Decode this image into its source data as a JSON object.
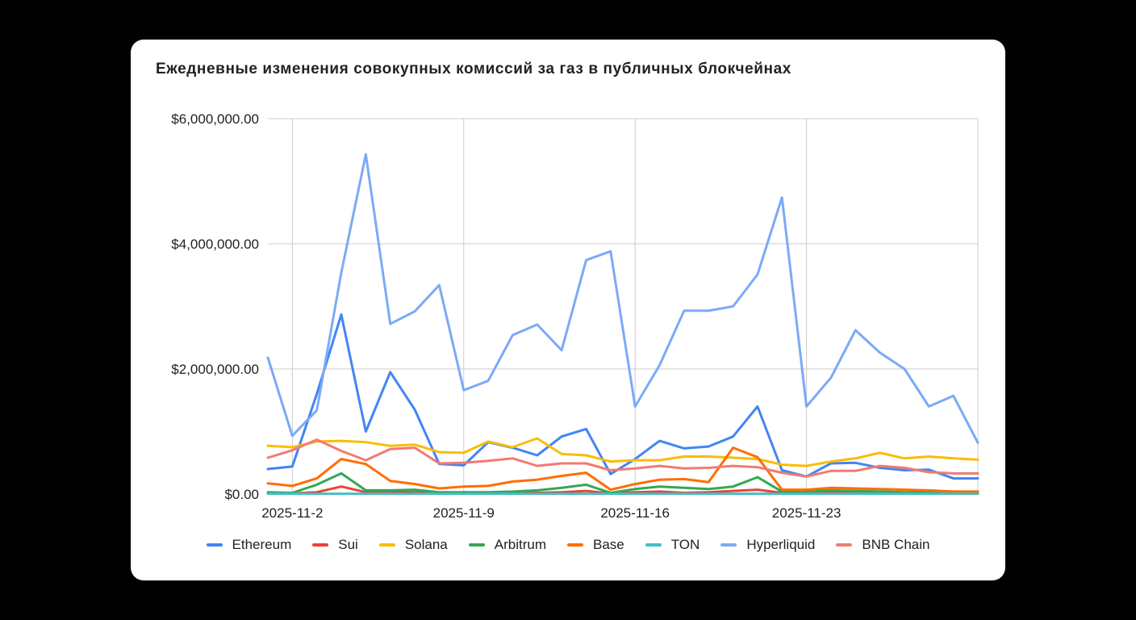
{
  "chart_data": {
    "type": "line",
    "title": "Ежедневные изменения совокупных комиссий за газ в публичных блокчейнах",
    "xlabel": "",
    "ylabel": "",
    "x": [
      "2025-11-1",
      "2025-11-2",
      "2025-11-3",
      "2025-11-4",
      "2025-11-5",
      "2025-11-6",
      "2025-11-7",
      "2025-11-8",
      "2025-11-9",
      "2025-11-10",
      "2025-11-11",
      "2025-11-12",
      "2025-11-13",
      "2025-11-14",
      "2025-11-15",
      "2025-11-16",
      "2025-11-17",
      "2025-11-18",
      "2025-11-19",
      "2025-11-20",
      "2025-11-21",
      "2025-11-22",
      "2025-11-23",
      "2025-11-24",
      "2025-11-25",
      "2025-11-26",
      "2025-11-27",
      "2025-11-28",
      "2025-11-29",
      "2025-11-30"
    ],
    "x_tick_labels": [
      "2025-11-2",
      "2025-11-9",
      "2025-11-16",
      "2025-11-23"
    ],
    "y_tick_labels": [
      "$0.00",
      "$2,000,000.00",
      "$4,000,000.00",
      "$6,000,000.00"
    ],
    "ylim": [
      0,
      6000000
    ],
    "grid": true,
    "legend_position": "bottom",
    "series": [
      {
        "name": "Ethereum",
        "color": "#4285f4",
        "values": [
          400000,
          440000,
          1600000,
          2870000,
          1000000,
          1950000,
          1350000,
          480000,
          460000,
          830000,
          740000,
          620000,
          920000,
          1040000,
          320000,
          560000,
          850000,
          730000,
          760000,
          920000,
          1400000,
          380000,
          280000,
          490000,
          500000,
          420000,
          380000,
          390000,
          250000,
          250000
        ]
      },
      {
        "name": "Sui",
        "color": "#ea4335",
        "values": [
          10000,
          10000,
          30000,
          120000,
          30000,
          30000,
          30000,
          20000,
          15000,
          15000,
          20000,
          20000,
          30000,
          50000,
          10000,
          30000,
          40000,
          20000,
          30000,
          50000,
          70000,
          20000,
          10000,
          30000,
          30000,
          30000,
          20000,
          20000,
          15000,
          15000
        ]
      },
      {
        "name": "Solana",
        "color": "#fbbc04",
        "values": [
          770000,
          750000,
          840000,
          850000,
          830000,
          770000,
          790000,
          670000,
          660000,
          840000,
          750000,
          890000,
          640000,
          620000,
          520000,
          540000,
          540000,
          600000,
          600000,
          580000,
          560000,
          470000,
          450000,
          520000,
          570000,
          660000,
          570000,
          600000,
          570000,
          550000
        ]
      },
      {
        "name": "Arbitrum",
        "color": "#34a853",
        "values": [
          30000,
          20000,
          150000,
          330000,
          60000,
          60000,
          70000,
          30000,
          30000,
          30000,
          40000,
          60000,
          100000,
          150000,
          20000,
          80000,
          120000,
          100000,
          80000,
          120000,
          270000,
          40000,
          40000,
          60000,
          50000,
          40000,
          30000,
          30000,
          20000,
          20000
        ]
      },
      {
        "name": "Base",
        "color": "#ff6d01",
        "values": [
          170000,
          130000,
          250000,
          560000,
          480000,
          210000,
          160000,
          90000,
          120000,
          130000,
          200000,
          230000,
          290000,
          340000,
          70000,
          160000,
          230000,
          240000,
          190000,
          740000,
          590000,
          70000,
          70000,
          100000,
          90000,
          80000,
          70000,
          60000,
          40000,
          40000
        ]
      },
      {
        "name": "TON",
        "color": "#46bdc6",
        "values": [
          5000,
          5000,
          5000,
          5000,
          5000,
          5000,
          5000,
          5000,
          5000,
          5000,
          5000,
          5000,
          5000,
          5000,
          5000,
          5000,
          5000,
          5000,
          5000,
          5000,
          5000,
          5000,
          5000,
          5000,
          5000,
          5000,
          5000,
          5000,
          5000,
          5000
        ]
      },
      {
        "name": "Hyperliquid",
        "color": "#7baaf7",
        "values": [
          2180000,
          930000,
          1340000,
          3540000,
          5430000,
          2720000,
          2920000,
          3340000,
          1660000,
          1810000,
          2540000,
          2710000,
          2300000,
          3740000,
          3880000,
          1400000,
          2060000,
          2930000,
          2930000,
          3000000,
          3510000,
          4740000,
          1400000,
          1860000,
          2620000,
          2260000,
          2000000,
          1400000,
          1570000,
          820000
        ]
      },
      {
        "name": "BNB Chain",
        "color": "#f07b72",
        "values": [
          580000,
          700000,
          870000,
          690000,
          540000,
          720000,
          740000,
          490000,
          500000,
          530000,
          570000,
          450000,
          490000,
          490000,
          380000,
          410000,
          450000,
          410000,
          420000,
          450000,
          430000,
          340000,
          280000,
          370000,
          370000,
          450000,
          420000,
          350000,
          330000,
          330000
        ]
      }
    ]
  }
}
